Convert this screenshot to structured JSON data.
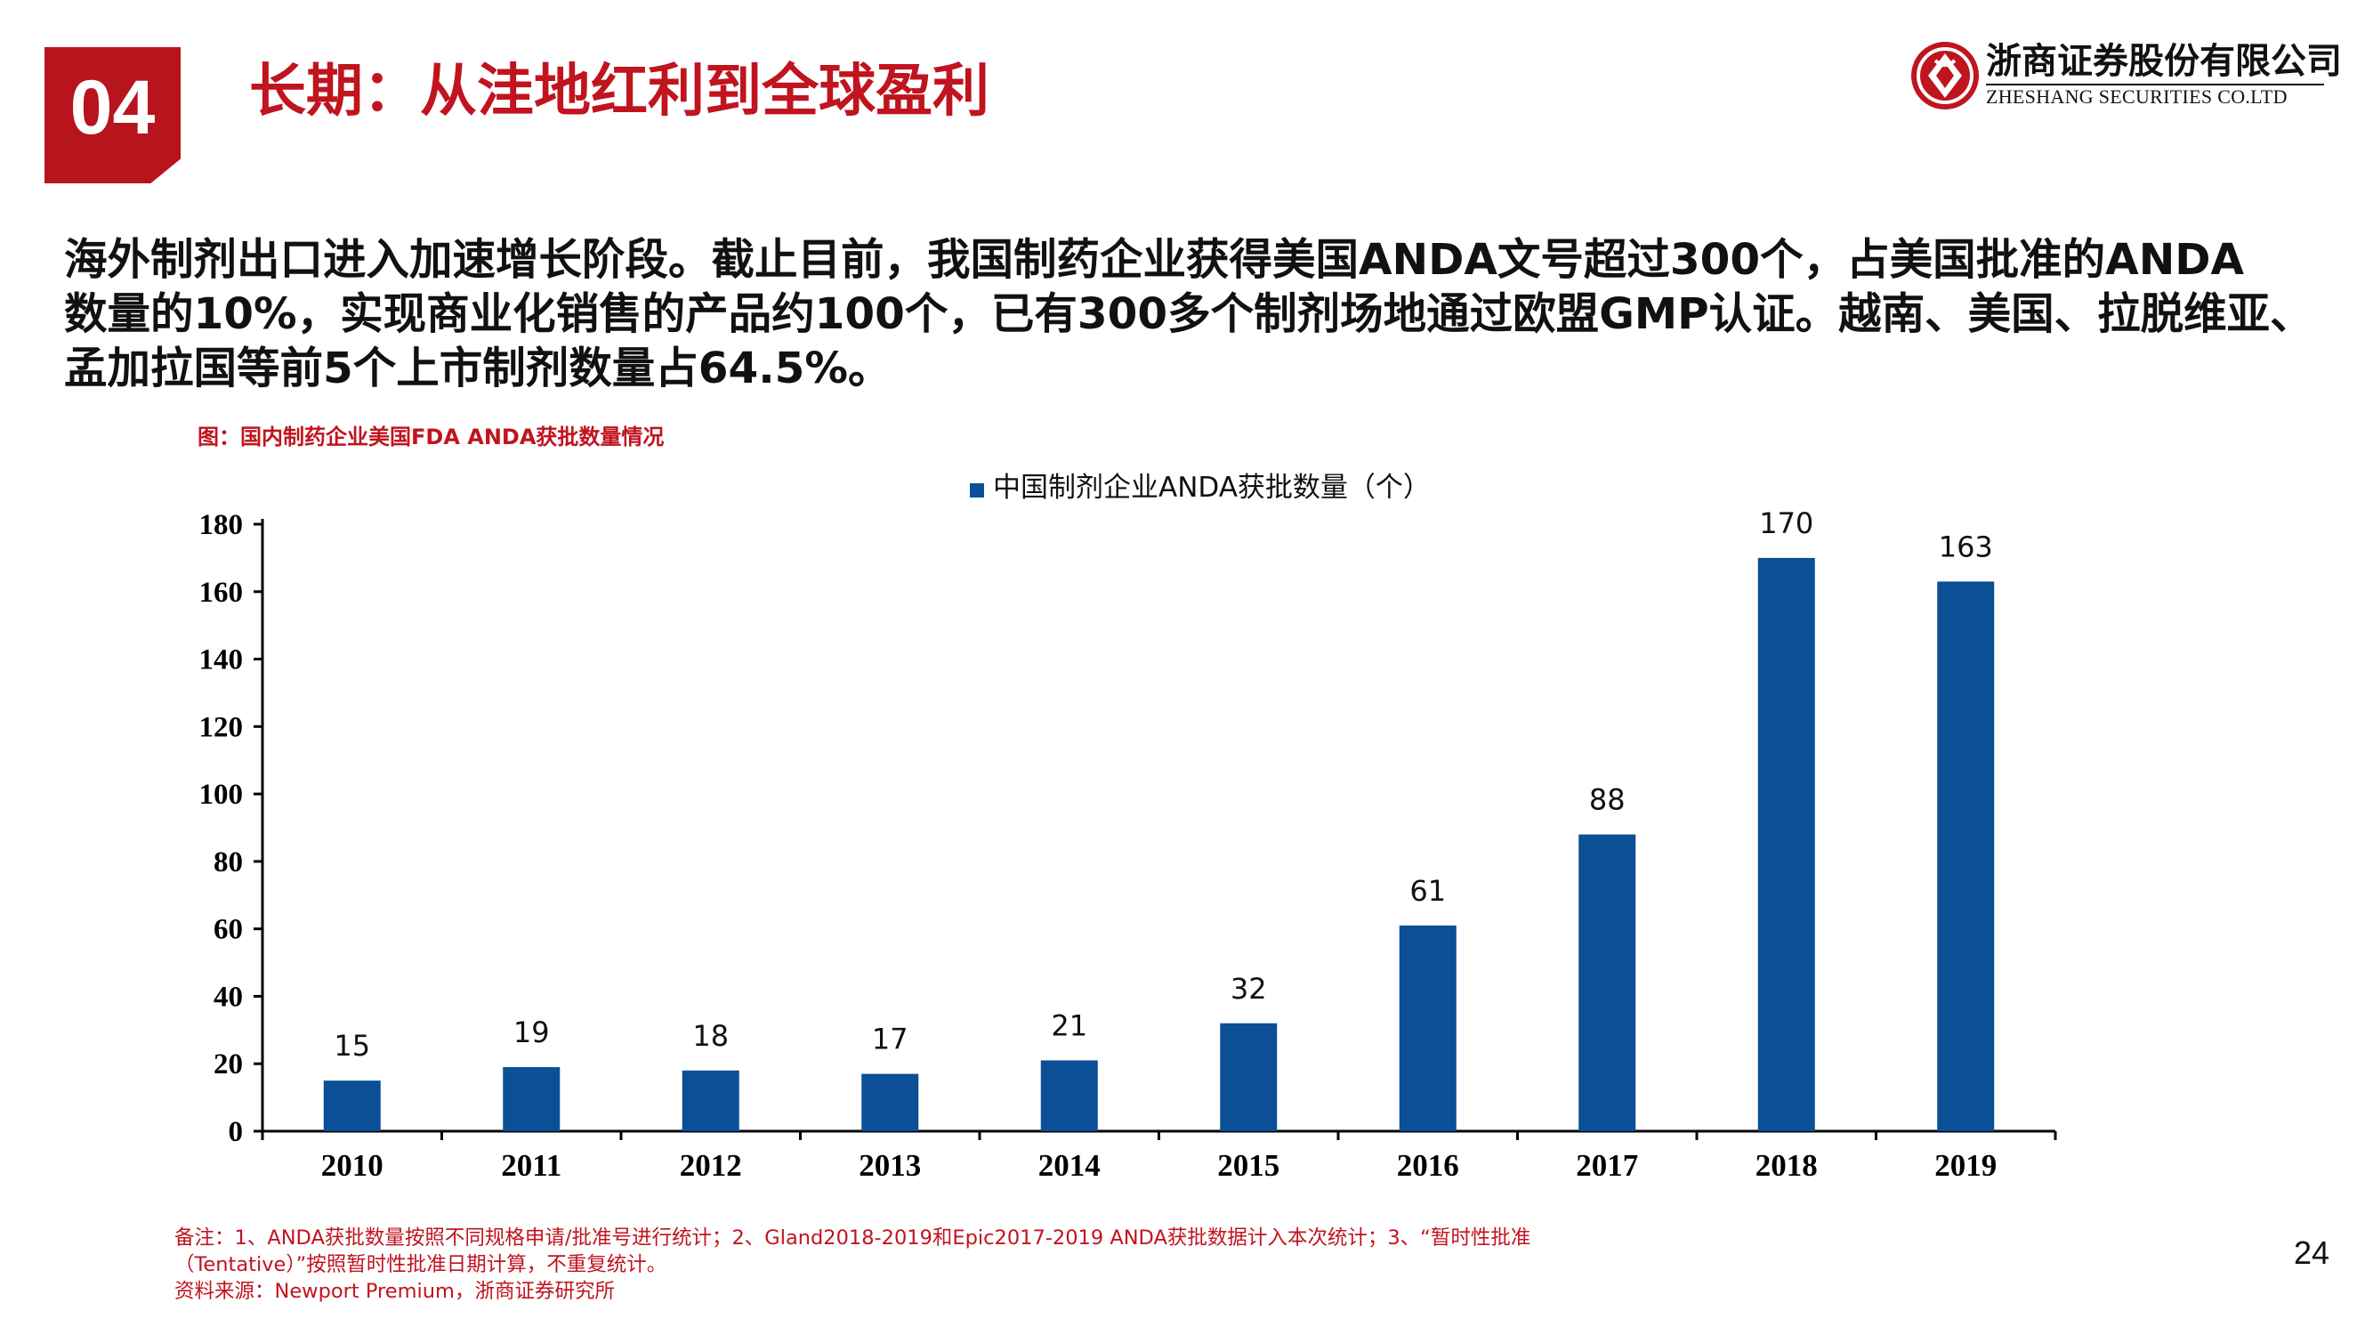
{
  "header": {
    "section_number": "04",
    "title": "长期：从洼地红利到全球盈利",
    "company_cn": "浙商证券股份有限公司",
    "company_en": "ZHESHANG SECURITIES CO.LTD",
    "logo_icon": "zheshang-logo-icon",
    "accent_color": "#c0141f"
  },
  "body": {
    "lines": [
      "海外制剂出口进入加速增长阶段。截止目前，我国制药企业获得美国ANDA文号超过300个，占美国批准的ANDA",
      "数量的10%，实现商业化销售的产品约100个，已有300多个制剂场地通过欧盟GMP认证。越南、美国、拉脱维亚、",
      "孟加拉国等前5个上市制剂数量占64.5%。"
    ]
  },
  "figure": {
    "caption": "图：国内制药企业美国FDA ANDA获批数量情况"
  },
  "chart_data": {
    "type": "bar",
    "categories": [
      "2010",
      "2011",
      "2012",
      "2013",
      "2014",
      "2015",
      "2016",
      "2017",
      "2018",
      "2019"
    ],
    "series": [
      {
        "name": "中国制剂企业ANDA获批数量（个）",
        "values": [
          15,
          19,
          18,
          17,
          21,
          32,
          61,
          88,
          170,
          163
        ],
        "color": "#0b4f96"
      }
    ],
    "data_labels": [
      "15",
      "19",
      "18",
      "17",
      "21",
      "32",
      "61",
      "88",
      "170",
      "163"
    ],
    "y_ticks": [
      "0",
      "20",
      "40",
      "60",
      "80",
      "100",
      "120",
      "140",
      "160",
      "180"
    ],
    "ylim": [
      0,
      180
    ],
    "title": "",
    "xlabel": "",
    "ylabel": "",
    "grid": false,
    "legend_position": "top-center"
  },
  "notes": {
    "lines": [
      "备注：1、ANDA获批数量按照不同规格申请/批准号进行统计；2、Gland2018-2019和Epic2017-2019 ANDA获批数据计入本次统计；3、“暂时性批准",
      "（Tentative）”按照暂时性批准日期计算，不重复统计。",
      "资料来源：Newport Premium，浙商证券研究所"
    ]
  },
  "page": {
    "number": "24"
  }
}
